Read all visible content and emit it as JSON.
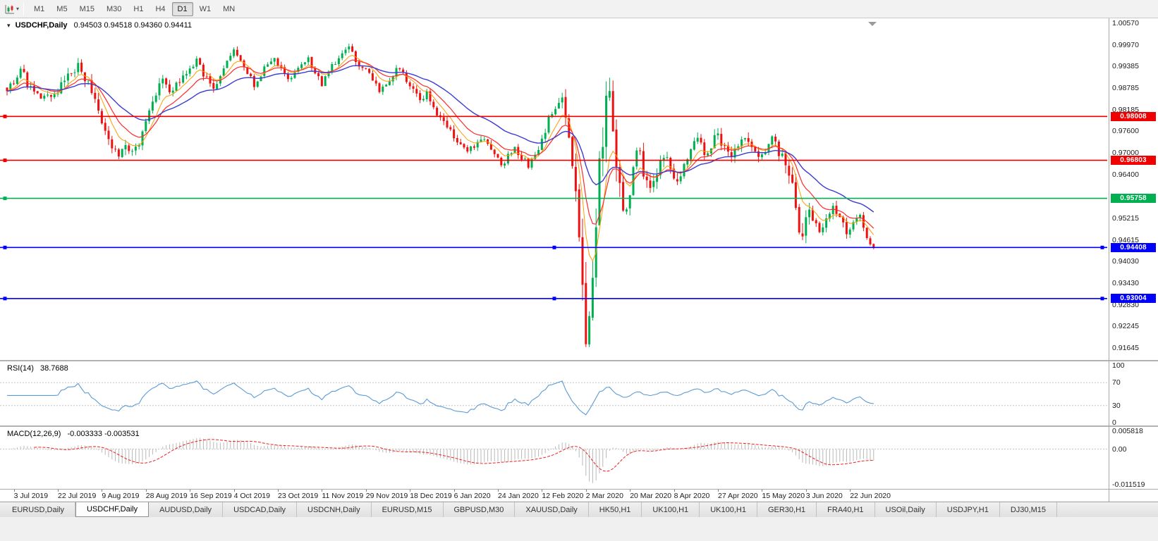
{
  "toolbar": {
    "chart_type_icon": "candlestick-chart-icon",
    "timeframes": [
      {
        "label": "M1",
        "active": false
      },
      {
        "label": "M5",
        "active": false
      },
      {
        "label": "M15",
        "active": false
      },
      {
        "label": "M30",
        "active": false
      },
      {
        "label": "H1",
        "active": false
      },
      {
        "label": "H4",
        "active": false
      },
      {
        "label": "D1",
        "active": true
      },
      {
        "label": "W1",
        "active": false
      },
      {
        "label": "MN",
        "active": false
      }
    ]
  },
  "chart": {
    "symbol_title": "USDCHF,Daily",
    "ohlc_text": "0.94503 0.94518 0.94360 0.94411",
    "open": "0.94503",
    "high": "0.94518",
    "low": "0.94360",
    "close": "0.94411"
  },
  "price_axis": {
    "max": 1.0057,
    "min": 0.91645,
    "labels": [
      "1.00570",
      "0.99970",
      "0.99385",
      "0.98785",
      "0.98185",
      "0.97600",
      "0.97000",
      "0.96400",
      "0.95800",
      "0.95215",
      "0.94615",
      "0.94030",
      "0.93430",
      "0.92830",
      "0.92245",
      "0.91645"
    ]
  },
  "hlines": [
    {
      "price": 0.98008,
      "label": "0.98008",
      "color": "#f00000",
      "handles": false
    },
    {
      "price": 0.96803,
      "label": "0.96803",
      "color": "#f00000",
      "handles": false
    },
    {
      "price": 0.95758,
      "label": "0.95758",
      "color": "#00b050",
      "handles": false
    },
    {
      "price": 0.94408,
      "label": "0.94408",
      "color": "#0000ff",
      "handles": true
    },
    {
      "price": 0.93004,
      "label": "0.93004",
      "color": "#0000ff",
      "handles": true
    }
  ],
  "rsi_panel": {
    "name": "RSI(14)",
    "value": "38.7688",
    "axis_labels": [
      "100",
      "70",
      "30",
      "0"
    ],
    "axis_values": [
      100,
      70,
      30,
      0
    ],
    "upper_level": 70,
    "lower_level": 30,
    "line_color": "#5b9bd5"
  },
  "macd_panel": {
    "name": "MACD(12,26,9)",
    "values": "-0.003333 -0.003531",
    "axis_max_label": "0.005818",
    "axis_zero_label": "0.00",
    "axis_min_label": "-0.011519",
    "max": 0.005818,
    "min": -0.011519,
    "histogram_color": "#b8b8b8",
    "signal_color": "#f02020"
  },
  "date_axis": {
    "labels": [
      {
        "text": "3 Jul 2019",
        "index": 2
      },
      {
        "text": "22 Jul 2019",
        "index": 15
      },
      {
        "text": "9 Aug 2019",
        "index": 28
      },
      {
        "text": "28 Aug 2019",
        "index": 41
      },
      {
        "text": "16 Sep 2019",
        "index": 54
      },
      {
        "text": "4 Oct 2019",
        "index": 67
      },
      {
        "text": "23 Oct 2019",
        "index": 80
      },
      {
        "text": "11 Nov 2019",
        "index": 93
      },
      {
        "text": "29 Nov 2019",
        "index": 106
      },
      {
        "text": "18 Dec 2019",
        "index": 119
      },
      {
        "text": "6 Jan 2020",
        "index": 132
      },
      {
        "text": "24 Jan 2020",
        "index": 145
      },
      {
        "text": "12 Feb 2020",
        "index": 158
      },
      {
        "text": "2 Mar 2020",
        "index": 171
      },
      {
        "text": "20 Mar 2020",
        "index": 184
      },
      {
        "text": "8 Apr 2020",
        "index": 197
      },
      {
        "text": "27 Apr 2020",
        "index": 210
      },
      {
        "text": "15 May 2020",
        "index": 223
      },
      {
        "text": "3 Jun 2020",
        "index": 236
      },
      {
        "text": "22 Jun 2020",
        "index": 249
      }
    ]
  },
  "tabs": [
    {
      "label": "EURUSD,Daily",
      "active": false
    },
    {
      "label": "USDCHF,Daily",
      "active": true
    },
    {
      "label": "AUDUSD,Daily",
      "active": false
    },
    {
      "label": "USDCAD,Daily",
      "active": false
    },
    {
      "label": "USDCNH,Daily",
      "active": false
    },
    {
      "label": "EURUSD,M15",
      "active": false
    },
    {
      "label": "GBPUSD,M30",
      "active": false
    },
    {
      "label": "XAUUSD,Daily",
      "active": false
    },
    {
      "label": "HK50,H1",
      "active": false
    },
    {
      "label": "UK100,H1",
      "active": false
    },
    {
      "label": "UK100,H1",
      "active": false
    },
    {
      "label": "GER30,H1",
      "active": false
    },
    {
      "label": "FRA40,H1",
      "active": false
    },
    {
      "label": "USOil,Daily",
      "active": false
    },
    {
      "label": "USDJPY,H1",
      "active": false
    },
    {
      "label": "DJ30,M15",
      "active": false
    }
  ],
  "chart_data": {
    "type": "candlestick",
    "symbol": "USDCHF",
    "timeframe": "Daily",
    "title": "USDCHF,Daily",
    "ylim": [
      0.91645,
      1.0057
    ],
    "candle_count": 257,
    "first_candle_x": 10,
    "spacing": 4.8,
    "seed": 7,
    "clip_high": 1.0008,
    "clip_low": 0.9167,
    "last_ohlc": {
      "open": 0.94503,
      "high": 0.94518,
      "low": 0.9436,
      "close": 0.94411
    },
    "colors": {
      "up": "#00b050",
      "down": "#ee1111"
    },
    "moving_averages": [
      {
        "period": 7,
        "color": "#ff9c00",
        "width": 1
      },
      {
        "period": 13,
        "color": "#ff2a2a",
        "width": 1.2
      },
      {
        "period": 30,
        "color": "#3c3cd2",
        "width": 1.4
      }
    ],
    "price_anchors": [
      [
        0,
        0.988
      ],
      [
        2,
        0.9895
      ],
      [
        4,
        0.9935
      ],
      [
        6,
        0.989
      ],
      [
        9,
        0.9855
      ],
      [
        12,
        0.985
      ],
      [
        15,
        0.9875
      ],
      [
        18,
        0.991
      ],
      [
        21,
        0.9935
      ],
      [
        24,
        0.989
      ],
      [
        26,
        0.9835
      ],
      [
        28,
        0.978
      ],
      [
        30,
        0.9725
      ],
      [
        33,
        0.969
      ],
      [
        35,
        0.9735
      ],
      [
        37,
        0.97
      ],
      [
        39,
        0.9725
      ],
      [
        41,
        0.978
      ],
      [
        44,
        0.986
      ],
      [
        46,
        0.9905
      ],
      [
        48,
        0.987
      ],
      [
        51,
        0.989
      ],
      [
        54,
        0.993
      ],
      [
        56,
        0.9955
      ],
      [
        58,
        0.9915
      ],
      [
        61,
        0.988
      ],
      [
        63,
        0.992
      ],
      [
        65,
        0.9955
      ],
      [
        67,
        0.9985
      ],
      [
        69,
        0.995
      ],
      [
        71,
        0.9915
      ],
      [
        73,
        0.989
      ],
      [
        76,
        0.993
      ],
      [
        79,
        0.996
      ],
      [
        81,
        0.993
      ],
      [
        83,
        0.99
      ],
      [
        86,
        0.993
      ],
      [
        89,
        0.9955
      ],
      [
        91,
        0.992
      ],
      [
        93,
        0.989
      ],
      [
        95,
        0.9925
      ],
      [
        98,
        0.996
      ],
      [
        101,
        0.999
      ],
      [
        103,
        0.9955
      ],
      [
        106,
        0.993
      ],
      [
        108,
        0.9895
      ],
      [
        110,
        0.987
      ],
      [
        113,
        0.99
      ],
      [
        116,
        0.994
      ],
      [
        118,
        0.9905
      ],
      [
        120,
        0.987
      ],
      [
        122,
        0.984
      ],
      [
        124,
        0.9865
      ],
      [
        126,
        0.983
      ],
      [
        128,
        0.9795
      ],
      [
        130,
        0.977
      ],
      [
        132,
        0.9745
      ],
      [
        134,
        0.972
      ],
      [
        136,
        0.97
      ],
      [
        138,
        0.972
      ],
      [
        140,
        0.9745
      ],
      [
        142,
        0.972
      ],
      [
        144,
        0.9695
      ],
      [
        146,
        0.9665
      ],
      [
        148,
        0.969
      ],
      [
        150,
        0.9715
      ],
      [
        152,
        0.969
      ],
      [
        154,
        0.9665
      ],
      [
        156,
        0.969
      ],
      [
        158,
        0.974
      ],
      [
        160,
        0.979
      ],
      [
        162,
        0.983
      ],
      [
        164,
        0.984
      ],
      [
        165,
        0.98
      ],
      [
        166,
        0.975
      ],
      [
        167,
        0.969
      ],
      [
        168,
        0.96
      ],
      [
        169,
        0.948
      ],
      [
        170,
        0.933
      ],
      [
        171,
        0.922
      ],
      [
        172,
        0.93
      ],
      [
        173,
        0.94
      ],
      [
        174,
        0.953
      ],
      [
        175,
        0.965
      ],
      [
        176,
        0.976
      ],
      [
        177,
        0.986
      ],
      [
        178,
        0.988
      ],
      [
        179,
        0.979
      ],
      [
        180,
        0.968
      ],
      [
        181,
        0.959
      ],
      [
        182,
        0.9545
      ],
      [
        183,
        0.9525
      ],
      [
        184,
        0.96
      ],
      [
        185,
        0.967
      ],
      [
        186,
        0.973
      ],
      [
        187,
        0.97
      ],
      [
        188,
        0.964
      ],
      [
        190,
        0.959
      ],
      [
        192,
        0.9645
      ],
      [
        194,
        0.9695
      ],
      [
        196,
        0.9655
      ],
      [
        198,
        0.9615
      ],
      [
        200,
        0.9665
      ],
      [
        202,
        0.9705
      ],
      [
        204,
        0.9735
      ],
      [
        206,
        0.9695
      ],
      [
        208,
        0.9725
      ],
      [
        210,
        0.975
      ],
      [
        212,
        0.9715
      ],
      [
        214,
        0.9685
      ],
      [
        216,
        0.972
      ],
      [
        218,
        0.975
      ],
      [
        220,
        0.971
      ],
      [
        222,
        0.968
      ],
      [
        224,
        0.9715
      ],
      [
        226,
        0.9745
      ],
      [
        228,
        0.9705
      ],
      [
        230,
        0.9665
      ],
      [
        231,
        0.9635
      ],
      [
        232,
        0.96
      ],
      [
        233,
        0.9555
      ],
      [
        234,
        0.9505
      ],
      [
        235,
        0.947
      ],
      [
        236,
        0.952
      ],
      [
        237,
        0.9555
      ],
      [
        238,
        0.952
      ],
      [
        240,
        0.949
      ],
      [
        242,
        0.952
      ],
      [
        244,
        0.955
      ],
      [
        246,
        0.9515
      ],
      [
        248,
        0.9485
      ],
      [
        250,
        0.951
      ],
      [
        252,
        0.953
      ],
      [
        253,
        0.9495
      ],
      [
        254,
        0.947
      ],
      [
        255,
        0.945
      ],
      [
        256,
        0.9441
      ]
    ],
    "vol_anchors": [
      [
        0,
        0.0022
      ],
      [
        26,
        0.0032
      ],
      [
        42,
        0.0028
      ],
      [
        60,
        0.0022
      ],
      [
        100,
        0.002
      ],
      [
        128,
        0.0022
      ],
      [
        150,
        0.002
      ],
      [
        163,
        0.0025
      ],
      [
        167,
        0.006
      ],
      [
        171,
        0.011
      ],
      [
        178,
        0.01
      ],
      [
        183,
        0.007
      ],
      [
        188,
        0.0045
      ],
      [
        196,
        0.0035
      ],
      [
        210,
        0.003
      ],
      [
        225,
        0.0028
      ],
      [
        231,
        0.0045
      ],
      [
        235,
        0.006
      ],
      [
        238,
        0.0032
      ],
      [
        248,
        0.0024
      ],
      [
        256,
        0.0015
      ]
    ]
  }
}
